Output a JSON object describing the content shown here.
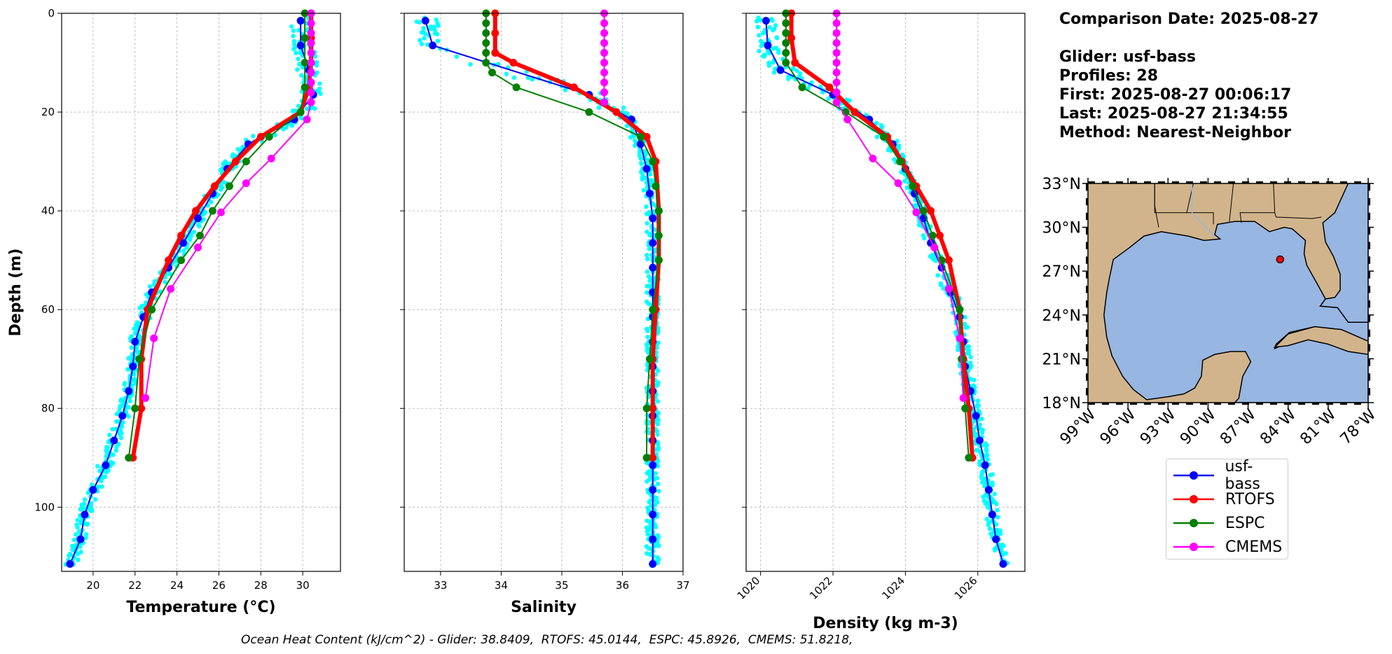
{
  "info": {
    "comparison": "Comparison Date: 2025-08-27",
    "glider": "Glider: usf-bass",
    "profiles": "Profiles: 28",
    "first": "First: 2025-08-27 00:06:17",
    "last": "Last: 2025-08-27 21:34:55",
    "method": "Method: Nearest-Neighbor"
  },
  "footer": "Ocean Heat Content (kJ/cm^2) - Glider: 38.8409,  RTOFS: 45.0144,  ESPC: 45.8926,  CMEMS: 51.8218,",
  "colors": {
    "glider": "#0000ff",
    "rtofs": "#ff0000",
    "espc": "#008000",
    "cmems": "#ff00ff",
    "cloud": "#00ffff",
    "land": "#d2b48c",
    "ocean": "#97b6e1"
  },
  "legend": [
    {
      "label": "usf-bass",
      "color": "#0000ff"
    },
    {
      "label": "RTOFS",
      "color": "#ff0000"
    },
    {
      "label": "ESPC",
      "color": "#008000"
    },
    {
      "label": "CMEMS",
      "color": "#ff00ff"
    }
  ],
  "chart_data": [
    {
      "type": "line",
      "xlabel": "Temperature (°C)",
      "ylabel": "Depth (m)",
      "xlim": [
        18.5,
        31.8
      ],
      "ylim": [
        113,
        0
      ],
      "xticks": [
        20,
        22,
        24,
        26,
        28,
        30
      ],
      "yticks": [
        0,
        20,
        40,
        60,
        80,
        100
      ],
      "grid": true,
      "series": [
        {
          "name": "usf-bass",
          "depth": [
            1.5,
            6.5,
            11.5,
            16.5,
            21.5,
            26.5,
            31.5,
            36.5,
            41.5,
            46.5,
            51.5,
            56.5,
            61.5,
            66.5,
            71.5,
            76.5,
            81.5,
            86.5,
            91.5,
            96.5,
            101.5,
            106.5,
            111.5
          ],
          "values": [
            29.9,
            29.9,
            30.3,
            30.5,
            29.6,
            27.4,
            26.4,
            25.7,
            25.0,
            24.3,
            23.6,
            22.8,
            22.4,
            22.0,
            21.9,
            21.7,
            21.4,
            21.0,
            20.6,
            20.0,
            19.6,
            19.4,
            18.9
          ]
        },
        {
          "name": "RTOFS",
          "depth": [
            0,
            5,
            10,
            15,
            20,
            25,
            30,
            35,
            40,
            45,
            50,
            60,
            70,
            80,
            90
          ],
          "values": [
            30.4,
            30.4,
            30.4,
            30.3,
            29.9,
            28.0,
            26.8,
            25.8,
            24.9,
            24.2,
            23.6,
            22.6,
            22.3,
            22.3,
            21.9
          ]
        },
        {
          "name": "ESPC",
          "depth": [
            0,
            5,
            10,
            15,
            20,
            25,
            30,
            35,
            40,
            45,
            50,
            60,
            70,
            80,
            90
          ],
          "values": [
            30.1,
            30.1,
            30.1,
            30.1,
            29.9,
            28.4,
            27.3,
            26.5,
            25.7,
            25.1,
            24.2,
            22.8,
            22.2,
            22.0,
            21.7
          ]
        },
        {
          "name": "CMEMS",
          "depth": [
            0,
            2,
            4,
            6,
            8,
            10,
            12,
            14,
            16,
            18,
            21.5,
            29.4,
            34.4,
            40.3,
            47.4,
            55.8,
            65.8,
            77.9
          ],
          "values": [
            30.4,
            30.4,
            30.4,
            30.4,
            30.4,
            30.4,
            30.4,
            30.4,
            30.4,
            30.4,
            30.2,
            28.5,
            27.3,
            26.1,
            25.0,
            23.7,
            22.9,
            22.5
          ]
        }
      ]
    },
    {
      "type": "line",
      "xlabel": "Salinity",
      "ylabel": "",
      "xlim": [
        32.4,
        37.0
      ],
      "ylim": [
        113,
        0
      ],
      "xticks": [
        33,
        34,
        35,
        36,
        37
      ],
      "yticks": [
        0,
        20,
        40,
        60,
        80,
        100
      ],
      "grid": true,
      "series": [
        {
          "name": "usf-bass",
          "depth": [
            1.5,
            6.5,
            16.5,
            21.5,
            26.5,
            31.5,
            36.5,
            41.5,
            46.5,
            51.5,
            56.5,
            61.5,
            66.5,
            71.5,
            76.5,
            81.5,
            86.5,
            91.5,
            96.5,
            101.5,
            106.5,
            111.5
          ],
          "values": [
            32.75,
            32.87,
            35.45,
            36.15,
            36.3,
            36.4,
            36.45,
            36.5,
            36.5,
            36.5,
            36.5,
            36.5,
            36.5,
            36.5,
            36.5,
            36.5,
            36.5,
            36.5,
            36.5,
            36.5,
            36.5,
            36.5
          ]
        },
        {
          "name": "RTOFS",
          "depth": [
            0,
            4,
            8,
            10,
            15,
            20,
            25,
            30,
            40,
            50,
            60,
            70,
            80,
            90
          ],
          "values": [
            33.9,
            33.9,
            33.9,
            34.2,
            35.2,
            35.9,
            36.4,
            36.55,
            36.6,
            36.6,
            36.55,
            36.5,
            36.5,
            36.5
          ]
        },
        {
          "name": "ESPC",
          "depth": [
            0,
            2,
            4,
            6,
            8,
            10,
            12,
            15,
            20,
            25,
            30,
            35,
            40,
            45,
            50,
            60,
            70,
            80,
            90
          ],
          "values": [
            33.75,
            33.75,
            33.75,
            33.75,
            33.75,
            33.75,
            33.85,
            34.25,
            35.45,
            36.3,
            36.5,
            36.55,
            36.6,
            36.6,
            36.6,
            36.5,
            36.45,
            36.4,
            36.4
          ]
        },
        {
          "name": "CMEMS",
          "depth": [
            0,
            2,
            4,
            6,
            8,
            10,
            12,
            14,
            16,
            18
          ],
          "values": [
            35.7,
            35.7,
            35.7,
            35.7,
            35.7,
            35.7,
            35.7,
            35.7,
            35.7,
            35.7
          ]
        }
      ]
    },
    {
      "type": "line",
      "xlabel": "Density (kg m-3)",
      "ylabel": "",
      "xlim": [
        1019.6,
        1027.3
      ],
      "ylim": [
        113,
        0
      ],
      "xticks": [
        1020,
        1022,
        1024,
        1026
      ],
      "yticks": [
        0,
        20,
        40,
        60,
        80,
        100
      ],
      "grid": true,
      "series": [
        {
          "name": "usf-bass",
          "depth": [
            1.5,
            6.5,
            11.5,
            16.5,
            21.5,
            26.5,
            31.5,
            36.5,
            41.5,
            46.5,
            51.5,
            56.5,
            61.5,
            66.5,
            71.5,
            76.5,
            81.5,
            86.5,
            91.5,
            96.5,
            101.5,
            106.5,
            111.5
          ],
          "values": [
            1020.15,
            1020.2,
            1020.55,
            1022.0,
            1023.0,
            1023.65,
            1024.0,
            1024.25,
            1024.5,
            1024.7,
            1025.0,
            1025.25,
            1025.5,
            1025.6,
            1025.65,
            1025.8,
            1025.95,
            1026.05,
            1026.2,
            1026.3,
            1026.4,
            1026.5,
            1026.7
          ]
        },
        {
          "name": "RTOFS",
          "depth": [
            0,
            5,
            10,
            15,
            20,
            25,
            30,
            35,
            40,
            45,
            50,
            60,
            70,
            80,
            90
          ],
          "values": [
            1020.85,
            1020.85,
            1020.95,
            1021.9,
            1022.6,
            1023.5,
            1023.9,
            1024.3,
            1024.7,
            1024.95,
            1025.2,
            1025.5,
            1025.6,
            1025.75,
            1025.85
          ]
        },
        {
          "name": "ESPC",
          "depth": [
            0,
            2,
            4,
            6,
            8,
            10,
            15,
            20,
            25,
            30,
            35,
            40,
            45,
            50,
            60,
            70,
            80,
            90
          ],
          "values": [
            1020.7,
            1020.7,
            1020.7,
            1020.7,
            1020.7,
            1020.7,
            1021.15,
            1022.35,
            1023.4,
            1023.85,
            1024.2,
            1024.5,
            1024.75,
            1025.0,
            1025.5,
            1025.55,
            1025.65,
            1025.75
          ]
        },
        {
          "name": "CMEMS",
          "depth": [
            0,
            2,
            4,
            6,
            8,
            10,
            12,
            14,
            16,
            18,
            21.5,
            29.4,
            34.4,
            40.3,
            47.4,
            55.8,
            65.8,
            77.9
          ],
          "values": [
            1022.1,
            1022.1,
            1022.1,
            1022.1,
            1022.1,
            1022.1,
            1022.1,
            1022.1,
            1022.1,
            1022.1,
            1022.4,
            1023.1,
            1023.8,
            1024.3,
            1024.8,
            1025.2,
            1025.5,
            1025.6
          ]
        }
      ]
    }
  ],
  "map": {
    "lat_ticks": [
      "18°N",
      "21°N",
      "24°N",
      "27°N",
      "30°N",
      "33°N"
    ],
    "lon_ticks": [
      "99°W",
      "96°W",
      "93°W",
      "90°W",
      "87°W",
      "84°W",
      "81°W",
      "78°W"
    ],
    "lon_range": [
      -99,
      -78
    ],
    "lat_range": [
      18,
      33
    ],
    "glider_location": {
      "lon": -84.6,
      "lat": 27.8
    }
  }
}
